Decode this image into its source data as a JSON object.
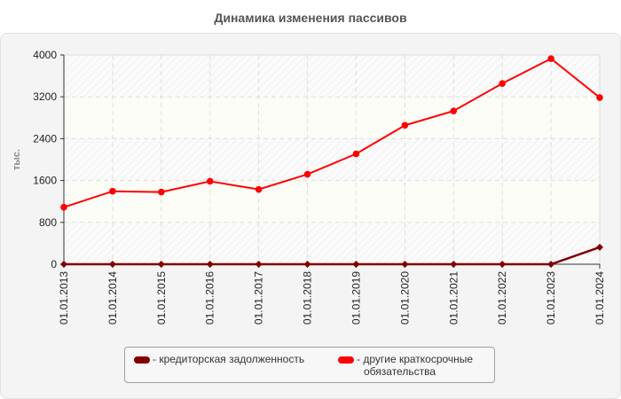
{
  "title": "Динамика изменения пассивов",
  "y_axis_label": "тыс.",
  "legend": [
    {
      "label": "- кредиторская задолженность",
      "color": "#800000"
    },
    {
      "label": "- другие краткосрочные",
      "label_line2": "обязательства",
      "color": "#ff0000"
    }
  ],
  "chart_data": {
    "type": "line",
    "title": "Динамика изменения пассивов",
    "xlabel": "",
    "ylabel": "тыс.",
    "ylim": [
      0,
      4000
    ],
    "yticks": [
      0,
      800,
      1600,
      2400,
      3200,
      4000
    ],
    "grid": true,
    "legend_position": "bottom",
    "categories": [
      "01.01.2013",
      "01.01.2014",
      "01.01.2015",
      "01.01.2016",
      "01.01.2017",
      "01.01.2018",
      "01.01.2019",
      "01.01.2020",
      "01.01.2021",
      "01.01.2022",
      "01.01.2023",
      "01.01.2024"
    ],
    "series": [
      {
        "name": "кредиторская задолженность",
        "color": "#800000",
        "values": [
          0,
          0,
          0,
          0,
          0,
          0,
          0,
          0,
          0,
          0,
          0,
          325
        ]
      },
      {
        "name": "другие краткосрочные обязательства",
        "color": "#ff0000",
        "values": [
          1090,
          1395,
          1380,
          1585,
          1430,
          1720,
          2110,
          2655,
          2930,
          3455,
          3930,
          3185
        ]
      }
    ]
  }
}
